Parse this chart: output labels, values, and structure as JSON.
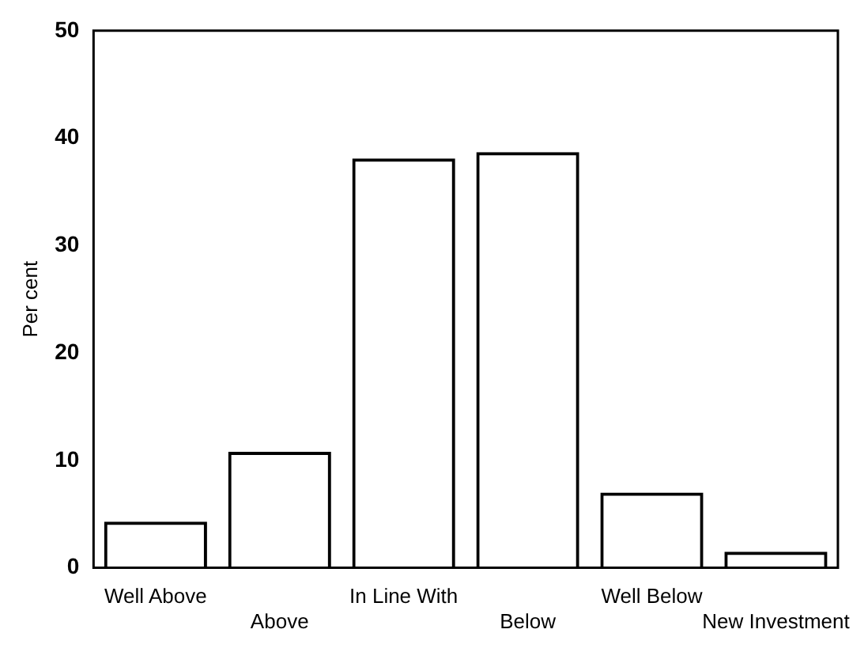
{
  "chart_data": {
    "type": "bar",
    "ylabel": "Per cent",
    "categories": [
      "Well Above",
      "Above",
      "In Line With",
      "Below",
      "Well Below",
      "New Investment"
    ],
    "values": [
      4.3,
      10.8,
      38.1,
      38.7,
      7.0,
      1.5
    ],
    "color": "#000000",
    "ylim": [
      0,
      50
    ],
    "yticks": [
      0,
      10,
      20,
      30,
      40,
      50
    ],
    "grid": false,
    "legend": false
  }
}
